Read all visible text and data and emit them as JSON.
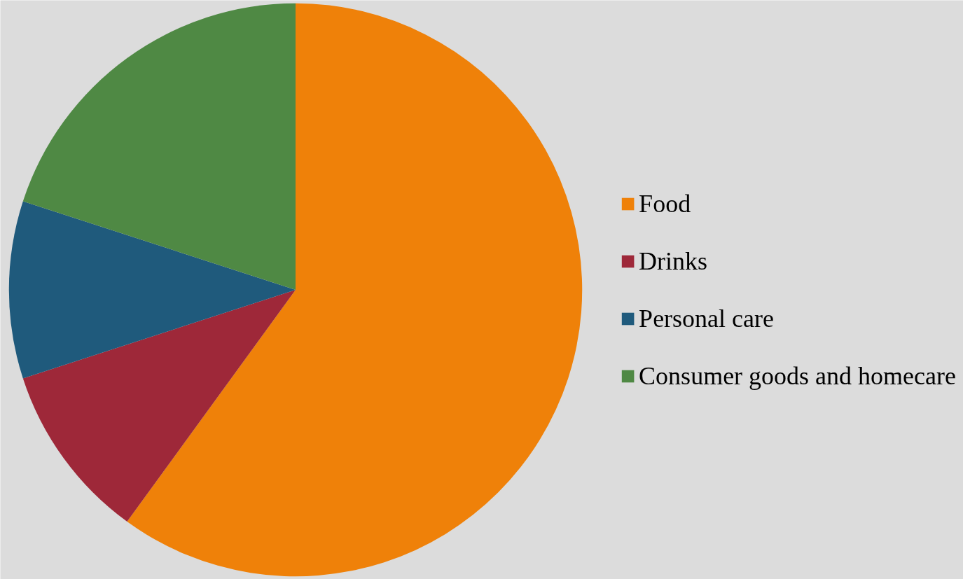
{
  "chart_data": {
    "type": "pie",
    "categories": [
      "Food",
      "Drinks",
      "Personal care",
      "Consumer goods and homecare"
    ],
    "values": [
      60,
      10,
      10,
      20
    ],
    "colors": [
      "#ef8109",
      "#9e2839",
      "#1f5a7c",
      "#4f8944"
    ],
    "legend": "right"
  }
}
